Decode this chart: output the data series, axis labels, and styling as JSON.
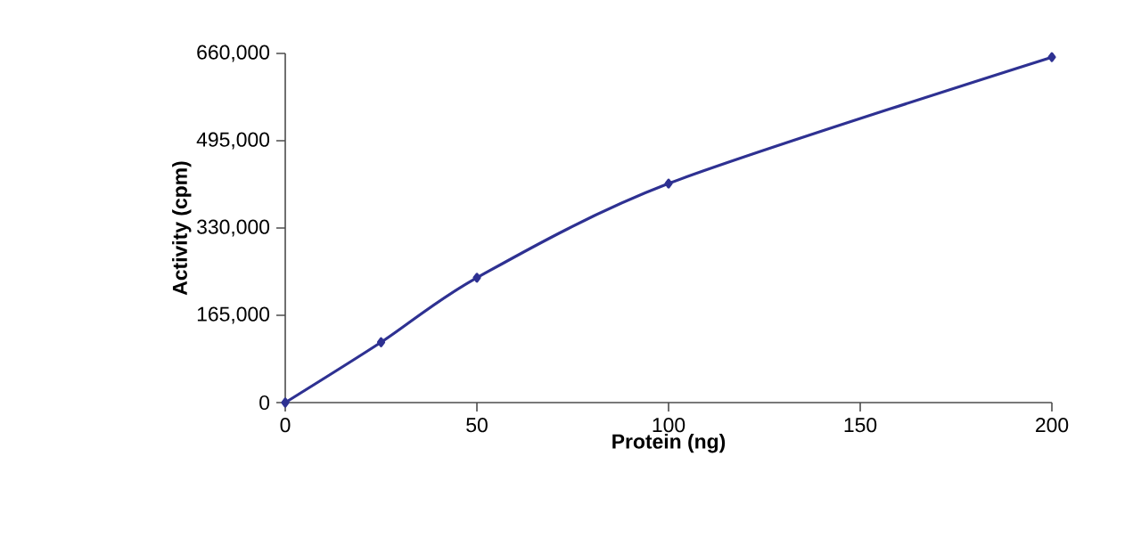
{
  "chart_data": {
    "type": "line",
    "xlabel": "Protein (ng)",
    "ylabel": "Activity (cpm)",
    "x": [
      0,
      25,
      50,
      100,
      200
    ],
    "values": [
      0,
      114000,
      236000,
      414000,
      653000
    ],
    "color": "#2e3192",
    "marker": "diamond",
    "xlim": [
      0,
      200
    ],
    "ylim": [
      0,
      660000
    ],
    "xticks": [
      0,
      50,
      100,
      150,
      200
    ],
    "yticks": [
      0,
      {
        "value": 165000,
        "label": "165,000"
      },
      {
        "value": 330000,
        "label": "330,000"
      },
      {
        "value": 495000,
        "label": "495,000"
      },
      {
        "value": 660000,
        "label": "660,000"
      }
    ]
  }
}
